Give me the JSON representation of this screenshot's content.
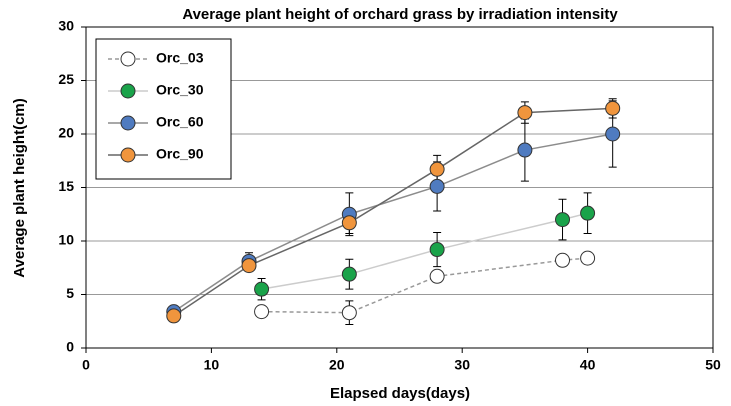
{
  "chart_data": {
    "type": "line",
    "title": "Average plant height of orchard grass by irradiation intensity",
    "xlabel": "Elapsed days(days)",
    "ylabel": "Average plant height(cm)",
    "xlim": [
      0,
      50
    ],
    "xticks": [
      0,
      10,
      20,
      30,
      40,
      50
    ],
    "ylim": [
      0,
      30
    ],
    "yticks": [
      0,
      5,
      10,
      15,
      20,
      25,
      30
    ],
    "grid": true,
    "legend": "upper left",
    "series": [
      {
        "name": "Orc_03",
        "color": "#ffffff",
        "line_color": "#999999",
        "dashed": true,
        "x": [
          14,
          21,
          28,
          38,
          40
        ],
        "values": [
          3.4,
          3.3,
          6.7,
          8.2,
          8.4
        ],
        "errors": [
          0.3,
          1.1,
          0.4,
          0.3,
          0.3
        ]
      },
      {
        "name": "Orc_30",
        "color": "#1aa34a",
        "line_color": "#cccccc",
        "dashed": false,
        "x": [
          14,
          21,
          28,
          38,
          40
        ],
        "values": [
          5.5,
          6.9,
          9.2,
          12.0,
          12.6
        ],
        "errors": [
          1.0,
          1.4,
          1.6,
          1.9,
          1.9
        ]
      },
      {
        "name": "Orc_60",
        "color": "#4f7bc0",
        "line_color": "#8c8c8c",
        "dashed": false,
        "x": [
          7,
          13,
          21,
          28,
          35,
          42
        ],
        "values": [
          3.4,
          8.1,
          12.5,
          15.1,
          18.5,
          20.0
        ],
        "errors": [
          0.2,
          0.8,
          2.0,
          2.3,
          2.9,
          3.1
        ]
      },
      {
        "name": "Orc_90",
        "color": "#f0953d",
        "line_color": "#666666",
        "dashed": false,
        "x": [
          7,
          13,
          21,
          28,
          35,
          42
        ],
        "values": [
          3.0,
          7.7,
          11.7,
          16.7,
          22.0,
          22.4
        ],
        "errors": [
          0.2,
          0.5,
          1.0,
          1.3,
          1.0,
          0.9
        ]
      }
    ]
  }
}
